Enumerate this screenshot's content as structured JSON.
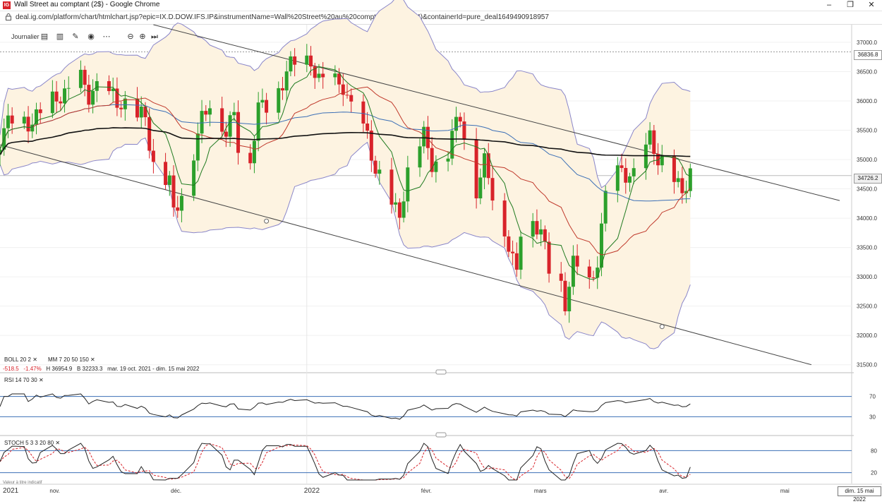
{
  "window": {
    "title": "Wall Street au comptant (2$) - Google Chrome",
    "url": "deal.ig.com/platform/chart/htmlchart.jsp?epic=IX.D.DOW.IFS.IP&instrumentName=Wall%20Street%20au%20comptant%20(2%24)&containerId=pure_deal1649490918957",
    "minimize": "–",
    "maximize": "❐",
    "close": "✕",
    "app_icon": "IG"
  },
  "toolbar": {
    "period": "Journalier",
    "icons": [
      "candle-type-icon",
      "bar-type-icon",
      "draw-icon",
      "eye-icon",
      "more-icon",
      "zoom-out-icon",
      "zoom-in-icon",
      "jump-to-end-icon"
    ]
  },
  "indicators": {
    "boll": "BOLL  20  2",
    "mm": "MM  7  20  50  150",
    "close_glyph": "✕",
    "change": "-518.5",
    "change_pct": "-1.47%",
    "high": "H 36954.9",
    "low": "B 32233.3",
    "range": "mar. 19 oct. 2021 - dim. 15 mai 2022",
    "rsi": "RSI  14  70  30",
    "stoch": "STOCH  5  3  3  20  80",
    "footer": "Valeur à titre indicatif"
  },
  "price_boxes": {
    "high": "36836.8",
    "last": "34726.2"
  },
  "date_box": "dim. 15 mai 2022",
  "colors": {
    "up": "#2ca02c",
    "down": "#d8232a",
    "ma7": "#1f7a1f",
    "ma20": "#c0392b",
    "ma50": "#3b6fb6",
    "ma150": "#111111",
    "band": "#8a86c9",
    "band_fill": "#fdf3e1"
  },
  "chart_data": {
    "type": "candlestick",
    "instrument": "Wall Street au comptant (2$)",
    "timeframe": "Journalier",
    "price_axis": {
      "ticks": [
        31500,
        32000,
        32500,
        33000,
        33500,
        34000,
        34500,
        35000,
        35500,
        36000,
        36500,
        37000
      ],
      "range": [
        31400,
        37300
      ]
    },
    "time_axis": {
      "labels": [
        "2021",
        "nov.",
        "déc.",
        "2022",
        "févr.",
        "mars",
        "avr.",
        "mai"
      ],
      "range": [
        "2021-10-19",
        "2022-05-15"
      ]
    },
    "price_path": [
      [
        "2021-10-19",
        35350
      ],
      [
        "2021-10-22",
        35600
      ],
      [
        "2021-10-27",
        35750
      ],
      [
        "2021-11-01",
        35900
      ],
      [
        "2021-11-04",
        36150
      ],
      [
        "2021-11-08",
        36400
      ],
      [
        "2021-11-10",
        36000
      ],
      [
        "2021-11-12",
        36100
      ],
      [
        "2021-11-16",
        36200
      ],
      [
        "2021-11-19",
        35850
      ],
      [
        "2021-11-22",
        35650
      ],
      [
        "2021-11-24",
        35800
      ],
      [
        "2021-11-26",
        35000
      ],
      [
        "2021-11-30",
        34500
      ],
      [
        "2021-12-01",
        34000
      ],
      [
        "2021-12-03",
        34400
      ],
      [
        "2021-12-06",
        35250
      ],
      [
        "2021-12-08",
        35700
      ],
      [
        "2021-12-10",
        35900
      ],
      [
        "2021-12-14",
        35500
      ],
      [
        "2021-12-16",
        35900
      ],
      [
        "2021-12-17",
        35350
      ],
      [
        "2021-12-20",
        34900
      ],
      [
        "2021-12-22",
        35800
      ],
      [
        "2021-12-27",
        36250
      ],
      [
        "2021-12-29",
        36450
      ],
      [
        "2022-01-03",
        36700
      ],
      [
        "2022-01-04",
        36800
      ],
      [
        "2022-01-06",
        36400
      ],
      [
        "2022-01-10",
        36200
      ],
      [
        "2022-01-12",
        36250
      ],
      [
        "2022-01-14",
        35950
      ],
      [
        "2022-01-18",
        35350
      ],
      [
        "2022-01-20",
        34700
      ],
      [
        "2022-01-24",
        34300
      ],
      [
        "2022-01-26",
        34150
      ],
      [
        "2022-01-28",
        34700
      ],
      [
        "2022-02-01",
        35400
      ],
      [
        "2022-02-03",
        35050
      ],
      [
        "2022-02-07",
        35100
      ],
      [
        "2022-02-10",
        35700
      ],
      [
        "2022-02-14",
        34600
      ],
      [
        "2022-02-16",
        34950
      ],
      [
        "2022-02-18",
        34350
      ],
      [
        "2022-02-22",
        33600
      ],
      [
        "2022-02-24",
        33150
      ],
      [
        "2022-02-25",
        33900
      ],
      [
        "2022-02-28",
        33850
      ],
      [
        "2022-03-02",
        33700
      ],
      [
        "2022-03-04",
        33200
      ],
      [
        "2022-03-07",
        32900
      ],
      [
        "2022-03-08",
        32550
      ],
      [
        "2022-03-10",
        33100
      ],
      [
        "2022-03-14",
        32900
      ],
      [
        "2022-03-16",
        33400
      ],
      [
        "2022-03-18",
        34350
      ],
      [
        "2022-03-22",
        34750
      ],
      [
        "2022-03-25",
        34800
      ],
      [
        "2022-03-29",
        35300
      ],
      [
        "2022-03-31",
        34900
      ],
      [
        "2022-04-04",
        34750
      ],
      [
        "2022-04-06",
        34500
      ],
      [
        "2022-04-08",
        34726
      ]
    ],
    "bollinger": {
      "period": 20,
      "stddev": 2
    },
    "moving_averages": [
      7,
      20,
      50,
      150
    ],
    "rsi": {
      "period": 14,
      "levels": [
        70,
        30
      ]
    },
    "stochastic": {
      "params": [
        5,
        3,
        3
      ],
      "levels": [
        20,
        80
      ]
    },
    "trend_lines": [
      {
        "from": [
          "2021-11-26",
          37300
        ],
        "to": [
          "2022-05-15",
          34300
        ]
      },
      {
        "from": [
          "2021-10-19",
          35250
        ],
        "to": [
          "2022-05-08",
          31500
        ]
      }
    ],
    "grid": true
  }
}
